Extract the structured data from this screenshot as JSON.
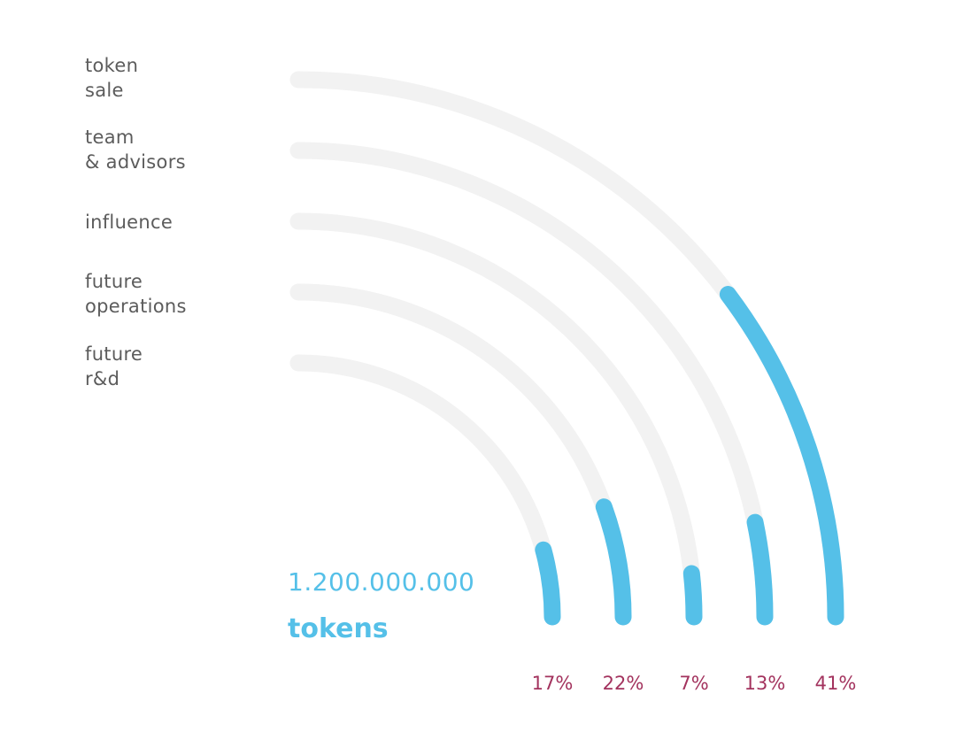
{
  "colors": {
    "track": "#f2f2f2",
    "accent": "#55c0e8",
    "label_text": "#5c5c5c",
    "percent_text": "#a3335e"
  },
  "total": {
    "value": "1.200.000.000",
    "unit": "tokens"
  },
  "chart_data": {
    "type": "radial-bar",
    "title": "",
    "categories": [
      "token\nsale",
      "team\n& advisors",
      "influence",
      "future\noperations",
      "future\nr&d"
    ],
    "values": [
      41,
      13,
      7,
      22,
      17
    ],
    "value_labels": [
      "41%",
      "13%",
      "7%",
      "22%",
      "17%"
    ],
    "max": 100,
    "unit": "%",
    "value_label_order": [
      "17%",
      "22%",
      "7%",
      "13%",
      "41%"
    ]
  }
}
